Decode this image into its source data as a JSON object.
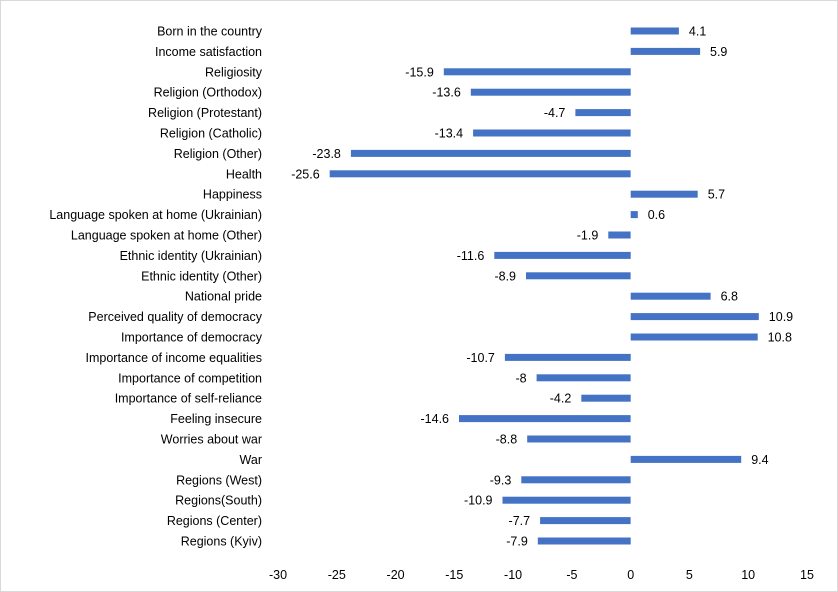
{
  "chart_data": {
    "type": "bar",
    "orientation": "horizontal",
    "title": "",
    "xlabel": "",
    "ylabel": "",
    "xlim": [
      -30,
      15
    ],
    "x_ticks": [
      -30,
      -25,
      -20,
      -15,
      -10,
      -5,
      0,
      5,
      10,
      15
    ],
    "grid": false,
    "legend": "none",
    "bar_color": "#4472c4",
    "categories": [
      "Born in the country",
      "Income satisfaction",
      "Religiosity",
      "Religion (Orthodox)",
      "Religion (Protestant)",
      "Religion (Catholic)",
      "Religion (Other)",
      "Health",
      "Happiness",
      "Language spoken at home (Ukrainian)",
      "Language spoken at home (Other)",
      "Ethnic identity (Ukrainian)",
      "Ethnic identity (Other)",
      "National pride",
      "Perceived quality of democracy",
      "Importance of democracy",
      "Importance of income equalities",
      "Importance of competition",
      "Importance of self-reliance",
      "Feeling insecure",
      "Worries about war",
      "War",
      "Regions (West)",
      "Regions(South)",
      "Regions (Center)",
      "Regions (Kyiv)"
    ],
    "values": [
      4.1,
      5.9,
      -15.9,
      -13.6,
      -4.7,
      -13.4,
      -23.8,
      -25.6,
      5.7,
      0.6,
      -1.9,
      -11.6,
      -8.9,
      6.8,
      10.9,
      10.8,
      -10.7,
      -8,
      -4.2,
      -14.6,
      -8.8,
      9.4,
      -9.3,
      -10.9,
      -7.7,
      -7.9
    ],
    "value_labels": [
      "4.1",
      "5.9",
      "-15.9",
      "-13.6",
      "-4.7",
      "-13.4",
      "-23.8",
      "-25.6",
      "5.7",
      "0.6",
      "-1.9",
      "-11.6",
      "-8.9",
      "6.8",
      "10.9",
      "10.8",
      "-10.7",
      "-8",
      "-4.2",
      "-14.6",
      "-8.8",
      "9.4",
      "-9.3",
      "-10.9",
      "-7.7",
      "-7.9"
    ]
  }
}
